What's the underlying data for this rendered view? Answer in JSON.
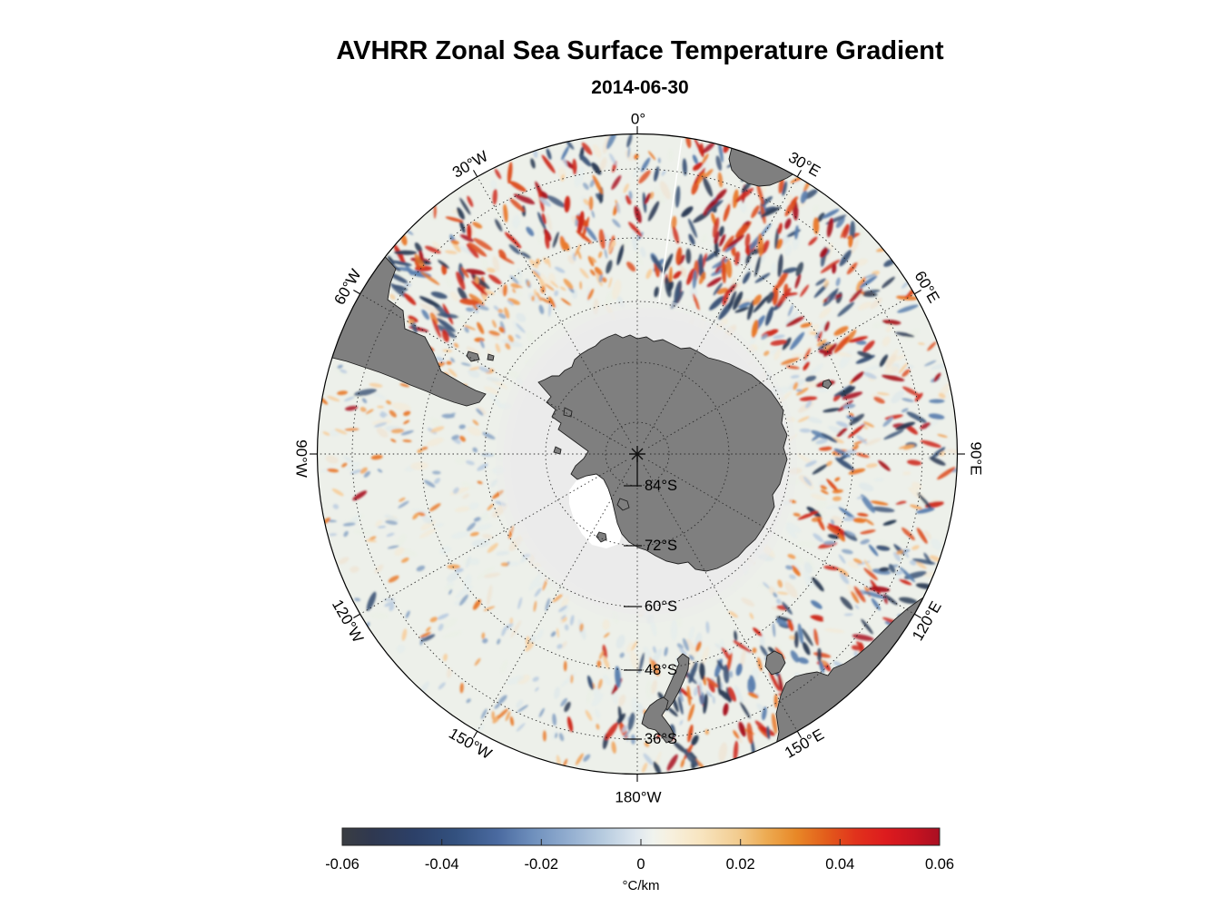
{
  "figure": {
    "title": "AVHRR Zonal Sea Surface Temperature Gradient",
    "subtitle": "2014-06-30"
  },
  "chart_data": {
    "type": "heatmap",
    "title": "AVHRR Zonal Sea Surface Temperature Gradient",
    "subtitle_date": "2014-06-30",
    "projection": "south polar stereographic (Antarctica centered)",
    "variable": "zonal sea surface temperature gradient",
    "units": "°C/km",
    "value_range": [
      -0.06,
      0.06
    ],
    "meridian_interval_deg": 30,
    "latitude_circle_labels_deg": [
      84,
      72,
      60,
      48,
      36
    ],
    "meridians": [
      {
        "az": 0,
        "label": "0°"
      },
      {
        "az": 30,
        "label": "30°E"
      },
      {
        "az": 60,
        "label": "60°E"
      },
      {
        "az": 90,
        "label": "90°E"
      },
      {
        "az": 120,
        "label": "120°E"
      },
      {
        "az": 150,
        "label": "150°E"
      },
      {
        "az": 180,
        "label": "180°W"
      },
      {
        "az": 210,
        "label": "150°W"
      },
      {
        "az": 240,
        "label": "120°W"
      },
      {
        "az": 270,
        "label": "90°W"
      },
      {
        "az": 300,
        "label": "60°W"
      },
      {
        "az": 330,
        "label": "30°W"
      }
    ],
    "latitudes": [
      {
        "label": "84°S"
      },
      {
        "label": "72°S"
      },
      {
        "label": "60°S"
      },
      {
        "label": "48°S"
      },
      {
        "label": "36°S"
      }
    ],
    "colorbar": {
      "label": "°C/km",
      "orientation": "horizontal",
      "tick_values": [
        -0.06,
        -0.04,
        -0.02,
        0,
        0.02,
        0.04,
        0.06
      ],
      "tick_labels": [
        "-0.06",
        "-0.04",
        "-0.02",
        "0",
        "0.02",
        "0.04",
        "0.06"
      ],
      "gradient": [
        [
          0.0,
          "#3a3d42"
        ],
        [
          0.05,
          "#2f3850"
        ],
        [
          0.12,
          "#2c4068"
        ],
        [
          0.19,
          "#33517f"
        ],
        [
          0.26,
          "#4a6aa0"
        ],
        [
          0.32,
          "#6f90bd"
        ],
        [
          0.38,
          "#93aed0"
        ],
        [
          0.44,
          "#b9cde0"
        ],
        [
          0.49,
          "#dde6ee"
        ],
        [
          0.52,
          "#f0f3ee"
        ],
        [
          0.55,
          "#f7f0de"
        ],
        [
          0.6,
          "#f8e5c0"
        ],
        [
          0.66,
          "#f2cd92"
        ],
        [
          0.71,
          "#edab52"
        ],
        [
          0.76,
          "#e88827"
        ],
        [
          0.81,
          "#e35d1b"
        ],
        [
          0.86,
          "#e1321c"
        ],
        [
          0.91,
          "#dd1b1e"
        ],
        [
          0.96,
          "#c61320"
        ],
        [
          1.0,
          "#a90f22"
        ]
      ]
    }
  },
  "map": {
    "land_color": "#7f7f7f",
    "land_outline_color": "#1f1f1f",
    "ocean_base_color": "#edf0ea",
    "ice_zone_color": "#ececec",
    "ross_sea_color": "#ffffff",
    "graticule_color": "#222222",
    "texture": {
      "seed": 1337,
      "count": 1050,
      "faint_count": 440,
      "negative": [
        "#2c3c55",
        "#3d5578",
        "#5b7fae",
        "#8fa8c6",
        "#bccde0"
      ],
      "positive": [
        "#a81320",
        "#ce2a1c",
        "#dd4d1d",
        "#e8792a",
        "#f0a55f",
        "#f6cfa0"
      ],
      "faint": [
        "#e3ecec",
        "#dce7ea",
        "#f4e9d6",
        "#efe2cf",
        "#e9efe5"
      ],
      "sectors": [
        {
          "from": -70,
          "to": -12,
          "w": 1.0,
          "s": 0.85,
          "ir": 172,
          "msr": 245
        },
        {
          "from": -12,
          "to": 6,
          "w": 0.7,
          "s": 0.5,
          "ir": 170,
          "msr": 205
        },
        {
          "from": 6,
          "to": 46,
          "w": 1.2,
          "s": 1.0,
          "ir": 168,
          "msr": 165
        },
        {
          "from": 46,
          "to": 112,
          "w": 0.85,
          "s": 0.6,
          "ir": 175,
          "msr": 195
        },
        {
          "from": 112,
          "to": 176,
          "w": 0.9,
          "s": 0.7,
          "ir": 195,
          "msr": 225
        },
        {
          "from": 176,
          "to": 196,
          "w": 0.6,
          "s": 0.45,
          "ir": 192,
          "msr": 205
        },
        {
          "from": 196,
          "to": 290,
          "w": 0.42,
          "s": 0.2,
          "ir": 148,
          "msr": 300
        }
      ]
    }
  }
}
